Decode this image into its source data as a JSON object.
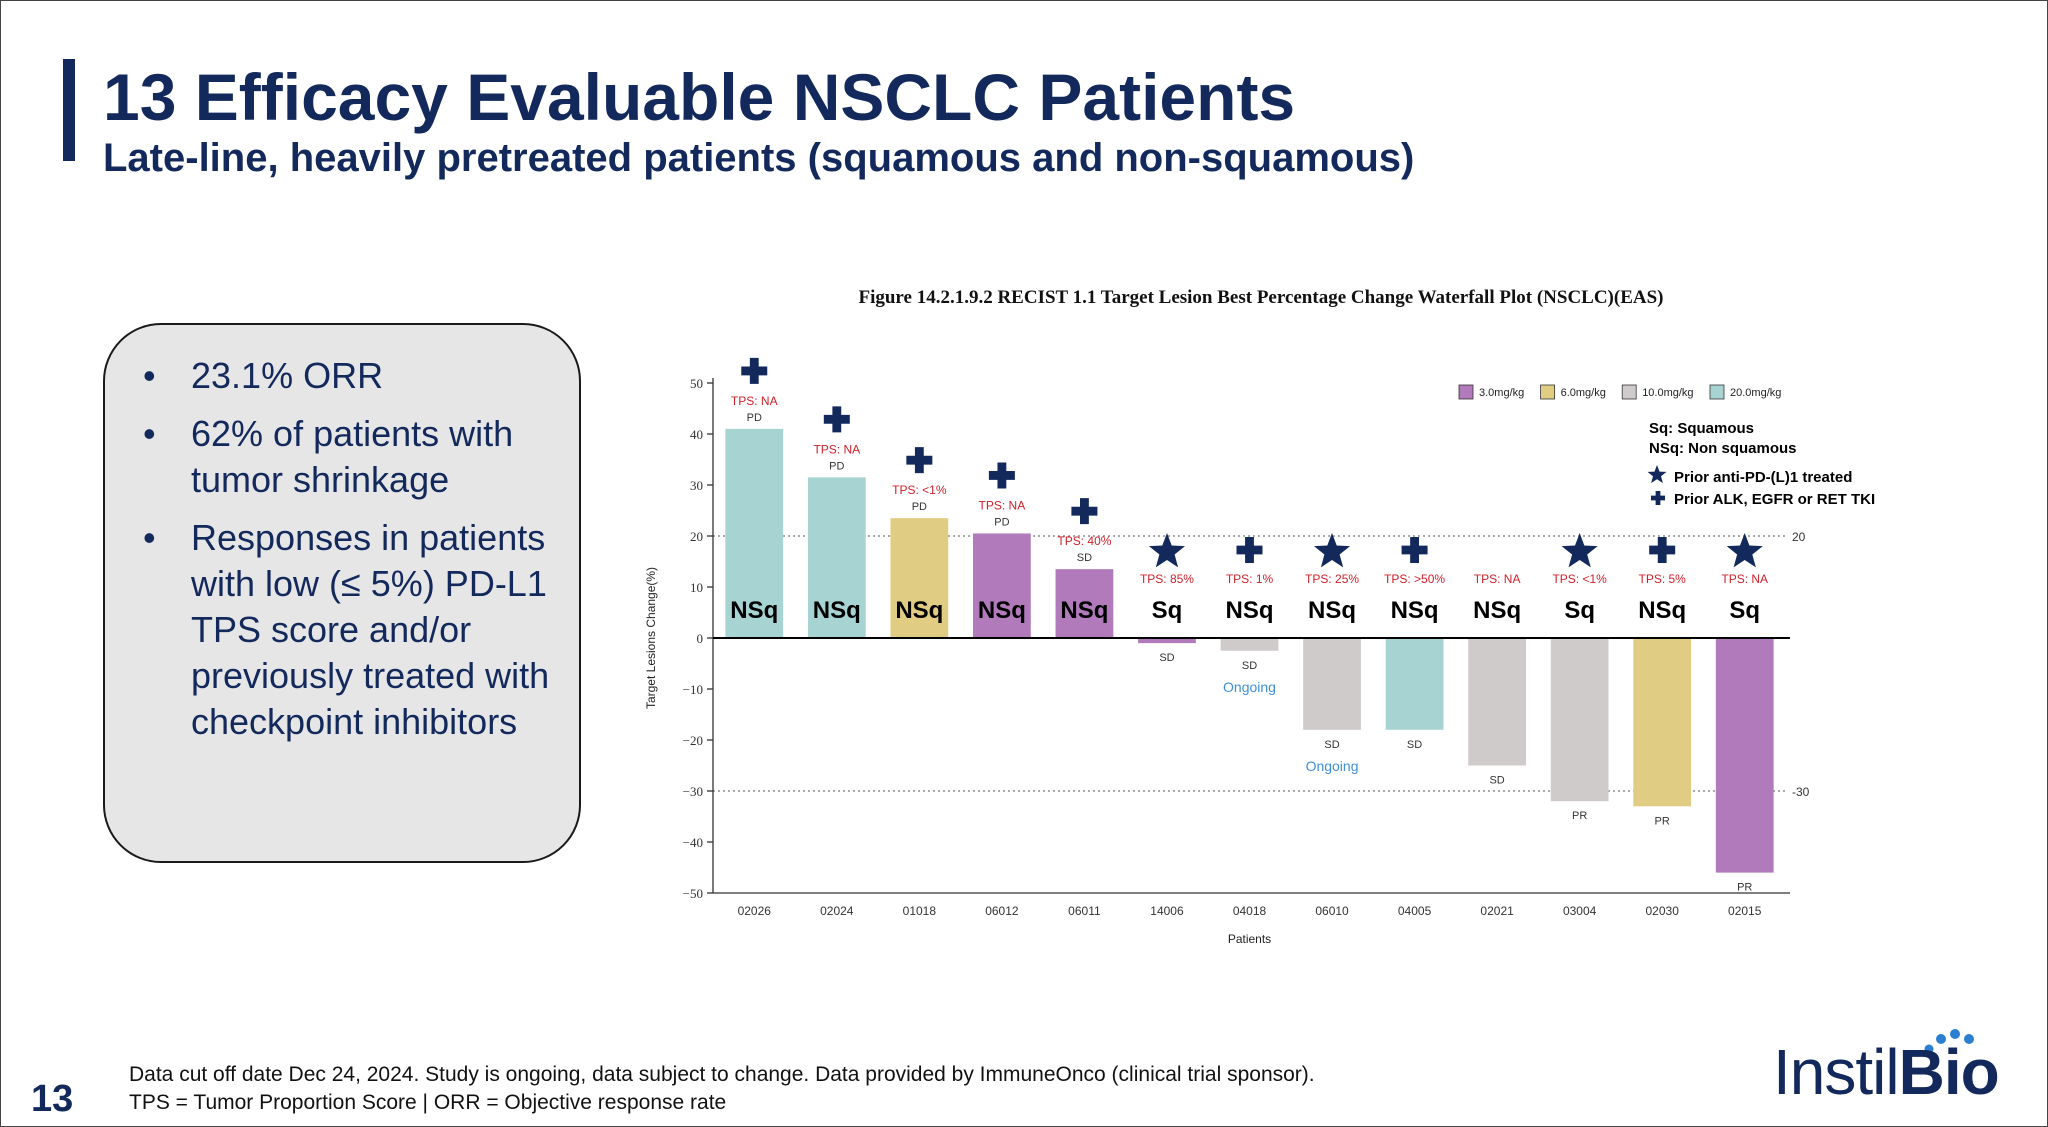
{
  "header": {
    "title": "13 Efficacy Evaluable NSCLC Patients",
    "subtitle": "Late-line, heavily pretreated patients (squamous and non-squamous)"
  },
  "callout": {
    "bullet_char": "•",
    "bullets": [
      "23.1% ORR",
      "62% of patients with tumor shrinkage",
      "Responses in patients with low (≤ 5%) PD-L1 TPS score and/or previously treated with checkpoint inhibitors"
    ]
  },
  "colors": {
    "navy": "#13295c",
    "tps_red": "#d0202a",
    "ongoing_blue": "#3f8fd8",
    "dose_3": "#b07abb",
    "dose_6": "#e1cc84",
    "dose_10": "#cfcbcb",
    "dose_20": "#a8d3d3"
  },
  "chart_data": {
    "type": "bar",
    "title": "Figure    14.2.1.9.2 RECIST 1.1 Target Lesion Best Percentage Change Waterfall Plot (NSCLC)(EAS)",
    "xlabel": "Patients",
    "ylabel": "Target Lesions Change(%)",
    "ylim": [
      -50,
      50
    ],
    "yticks": [
      50,
      40,
      30,
      20,
      10,
      0,
      -10,
      -20,
      -30,
      -40,
      -50
    ],
    "ytick_labels": [
      "50",
      "40",
      "30",
      "20",
      "10",
      "0",
      "−10",
      "−20",
      "−30",
      "−40",
      "−50"
    ],
    "reference_lines": [
      {
        "value": 20,
        "label": "20"
      },
      {
        "value": -30,
        "label": "-30"
      }
    ],
    "categories": [
      "02026",
      "02024",
      "01018",
      "06012",
      "06011",
      "14006",
      "04018",
      "06010",
      "04005",
      "02021",
      "03004",
      "02030",
      "02015"
    ],
    "values": [
      41,
      31.5,
      23.5,
      20.5,
      13.5,
      -1,
      -2.5,
      -18,
      -18,
      -25,
      -32,
      -33,
      -46
    ],
    "dose": [
      "20.0mg/kg",
      "20.0mg/kg",
      "6.0mg/kg",
      "3.0mg/kg",
      "3.0mg/kg",
      "3.0mg/kg",
      "10.0mg/kg",
      "10.0mg/kg",
      "20.0mg/kg",
      "10.0mg/kg",
      "10.0mg/kg",
      "6.0mg/kg",
      "3.0mg/kg"
    ],
    "response": [
      "PD",
      "PD",
      "PD",
      "PD",
      "SD",
      "SD",
      "SD",
      "SD",
      "SD",
      "SD",
      "PR",
      "PR",
      "PR"
    ],
    "ongoing": [
      false,
      false,
      false,
      false,
      false,
      false,
      true,
      true,
      false,
      false,
      false,
      false,
      false
    ],
    "ongoing_label": "Ongoing",
    "histology": [
      "NSq",
      "NSq",
      "NSq",
      "NSq",
      "NSq",
      "Sq",
      "NSq",
      "NSq",
      "NSq",
      "NSq",
      "Sq",
      "NSq",
      "Sq"
    ],
    "tps": [
      "TPS: NA",
      "TPS: NA",
      "TPS: <1%",
      "TPS: NA",
      "TPS: 40%",
      "TPS: 85%",
      "TPS: 1%",
      "TPS: 25%",
      "TPS: >50%",
      "TPS: NA",
      "TPS: <1%",
      "TPS: 5%",
      "TPS: NA"
    ],
    "prior_treatment": [
      "cross",
      "cross",
      "cross",
      "cross",
      "cross",
      "star",
      "cross",
      "star",
      "cross",
      "none",
      "star",
      "cross",
      "star"
    ],
    "legend": {
      "placement": "top-right",
      "doses": [
        {
          "label": "3.0mg/kg",
          "color": "#b07abb"
        },
        {
          "label": "6.0mg/kg",
          "color": "#e1cc84"
        },
        {
          "label": "10.0mg/kg",
          "color": "#cfcbcb"
        },
        {
          "label": "20.0mg/kg",
          "color": "#a8d3d3"
        }
      ],
      "notes": [
        "Sq: Squamous",
        "NSq: Non squamous"
      ],
      "star_label": "Prior anti-PD-(L)1 treated",
      "cross_label": "Prior ALK, EGFR or RET TKI"
    }
  },
  "footer": {
    "page_number": "13",
    "note_line1": "Data cut off date Dec 24, 2024. Study is ongoing, data subject to change. Data provided by ImmuneOnco (clinical trial sponsor).",
    "note_line2": "TPS = Tumor Proportion Score  |  ORR = Objective response rate",
    "logo_instil": "Instil",
    "logo_bio": "Bio"
  }
}
